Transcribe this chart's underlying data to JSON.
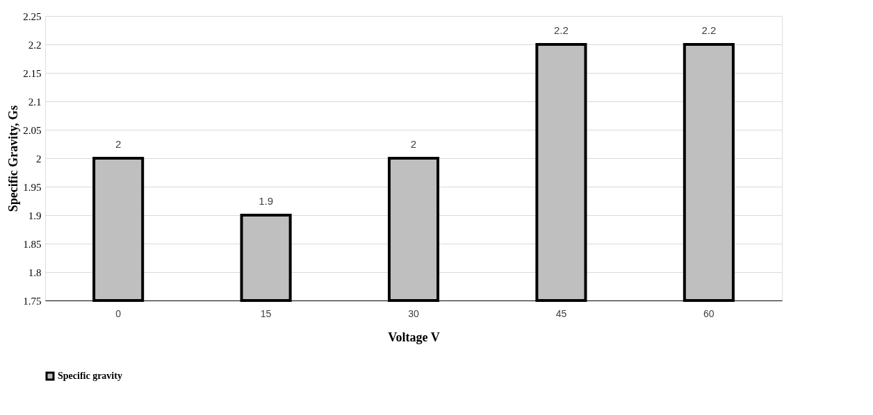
{
  "chart_data": {
    "type": "bar",
    "categories": [
      "0",
      "15",
      "30",
      "45",
      "60"
    ],
    "series": [
      {
        "name": "Specific gravity",
        "color": "#bfbfbf",
        "values": [
          2,
          1.9,
          2,
          2.2,
          2.2
        ]
      }
    ],
    "xlabel": "Voltage V",
    "ylabel": "Specific Gravity, Gs",
    "ylim": [
      1.75,
      2.25
    ],
    "yticks": [
      1.75,
      1.8,
      1.85,
      1.9,
      1.95,
      2,
      2.05,
      2.1,
      2.15,
      2.2,
      2.25
    ],
    "grid": "y",
    "legend": "bottom",
    "data_labels": true
  }
}
